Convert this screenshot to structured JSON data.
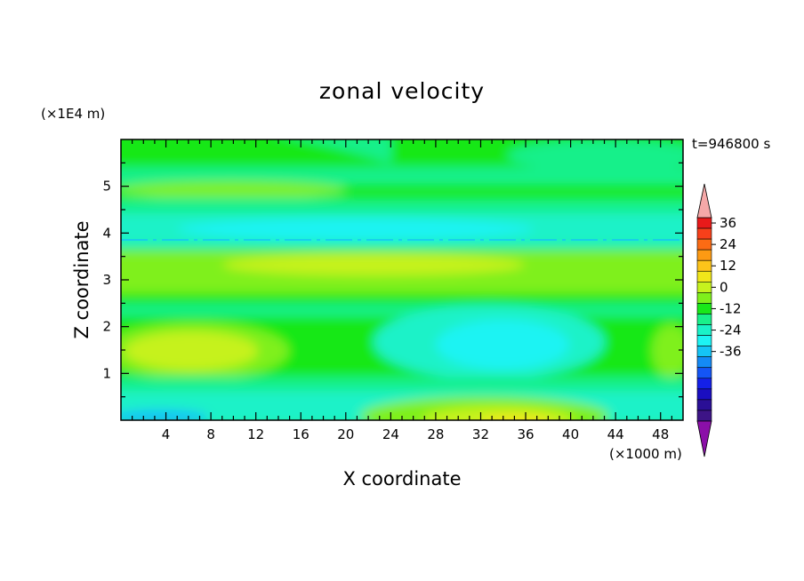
{
  "chart_data": {
    "type": "heatmap",
    "title": "zonal velocity",
    "xlabel": "X coordinate",
    "ylabel": "Z coordinate",
    "x_unit": "(×1000 m)",
    "y_unit": "(×1E4 m)",
    "annotation": "t=946800 s",
    "xlim": [
      0,
      50
    ],
    "ylim": [
      0,
      6
    ],
    "x_ticks": [
      "4",
      "8",
      "12",
      "16",
      "20",
      "24",
      "28",
      "32",
      "36",
      "40",
      "44",
      "48"
    ],
    "y_ticks": [
      "1",
      "2",
      "3",
      "4",
      "5"
    ],
    "x_tick_values": [
      4,
      8,
      12,
      16,
      20,
      24,
      28,
      32,
      36,
      40,
      44,
      48
    ],
    "y_tick_values": [
      1,
      2,
      3,
      4,
      5
    ],
    "colorbar": {
      "labels": [
        "36",
        "24",
        "12",
        "0",
        "-12",
        "-24",
        "-36"
      ],
      "label_values": [
        36,
        24,
        12,
        0,
        -12,
        -24,
        -36
      ],
      "range": [
        -42,
        42
      ],
      "step": 6,
      "colors_top_to_bottom": [
        "#e81a1a",
        "#f7401a",
        "#fb6b14",
        "#fd9a13",
        "#fdc41a",
        "#f0e61a",
        "#c6f21e",
        "#7ff01c",
        "#19e819",
        "#19f08a",
        "#1af2c8",
        "#1df3f3",
        "#15c4f5",
        "#148af5",
        "#1455f5",
        "#1420e8",
        "#1a0ec0",
        "#2a0f96",
        "#3d1486"
      ],
      "over_color": "#f5a8a8",
      "under_color": "#8b0fa8"
    },
    "field_description": "zonal velocity mostly between -12 and 18; positive layer 2.6-3.6, negative band near 3.8-4.4"
  }
}
